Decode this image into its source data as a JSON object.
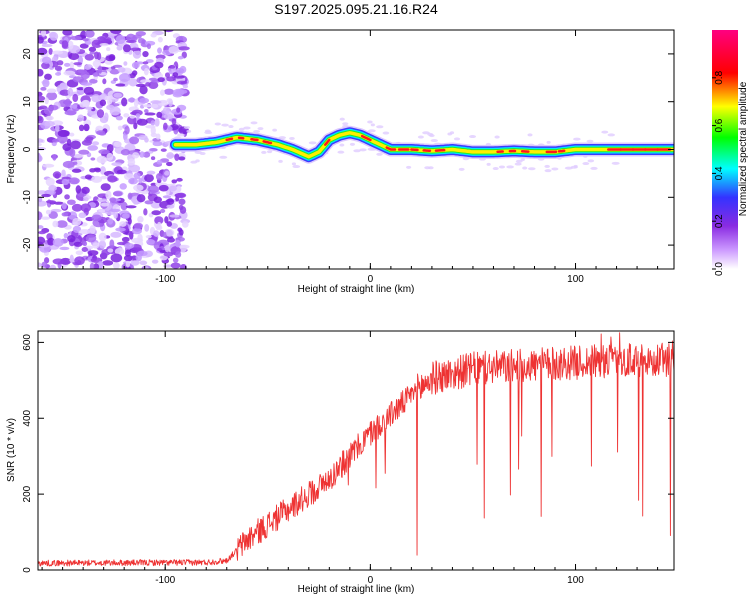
{
  "title": "S197.2025.095.21.16.R24",
  "chart_data": [
    {
      "type": "heatmap",
      "xlabel": "Height of straight line (km)",
      "ylabel": "Frequency (Hz)",
      "xlim": [
        -162,
        148
      ],
      "ylim": [
        -25,
        25
      ],
      "xticks": [
        -100,
        0,
        100
      ],
      "yticks": [
        -20,
        -10,
        0,
        10,
        20
      ],
      "colorbar": {
        "label": "Normalized spectral amplitude",
        "ticks": [
          "0.0",
          "0.2",
          "0.4",
          "0.6",
          "0.8"
        ],
        "range": [
          0,
          1
        ],
        "colors": [
          "#ffffff",
          "#cc99ff",
          "#8a2be2",
          "#3333ff",
          "#00ffff",
          "#00ff00",
          "#ffff00",
          "#ff0000",
          "#ff0080"
        ]
      },
      "ridge": {
        "x": [
          -95,
          -85,
          -75,
          -65,
          -55,
          -45,
          -38,
          -30,
          -25,
          -20,
          -15,
          -10,
          -5,
          0,
          5,
          10,
          20,
          30,
          40,
          50,
          60,
          70,
          80,
          90,
          100,
          110,
          120,
          130,
          148
        ],
        "y": [
          1,
          1,
          1.5,
          2.5,
          2,
          1,
          0,
          -1.5,
          -0.5,
          2,
          3,
          3.5,
          3,
          2,
          1,
          0,
          0,
          -0.3,
          0,
          -0.5,
          -0.5,
          -0.3,
          -0.5,
          -0.5,
          0,
          0,
          0,
          0,
          0
        ]
      }
    },
    {
      "type": "line",
      "xlabel": "Height of straight line (km)",
      "ylabel": "SNR (10 * v/v)",
      "xlim": [
        -162,
        148
      ],
      "ylim": [
        0,
        630
      ],
      "xticks": [
        -100,
        0,
        100
      ],
      "yticks": [
        0,
        200,
        400,
        600
      ],
      "color": "#ee3333",
      "trend": {
        "x": [
          -162,
          -80,
          -70,
          -60,
          -40,
          -20,
          -5,
          0,
          10,
          20,
          30,
          50,
          80,
          110,
          148
        ],
        "y": [
          18,
          20,
          25,
          80,
          160,
          240,
          330,
          360,
          410,
          460,
          505,
          530,
          540,
          550,
          555
        ]
      }
    }
  ]
}
